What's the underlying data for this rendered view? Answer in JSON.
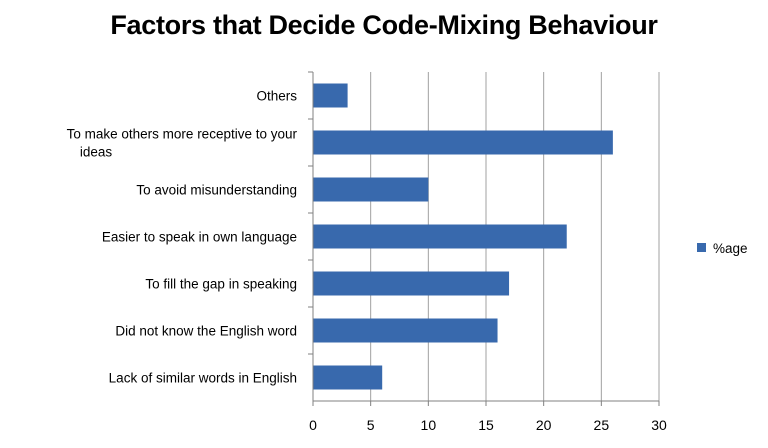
{
  "chart_data": {
    "type": "bar",
    "orientation": "horizontal",
    "title": "Factors that Decide Code-Mixing Behaviour",
    "categories": [
      "Others",
      "To make others more receptive to your ideas",
      "To avoid misunderstanding",
      "Easier to speak in own language",
      "To fill the gap in speaking",
      "Did not know the English word",
      "Lack of similar words in English"
    ],
    "category_lines": [
      [
        "Others"
      ],
      [
        "To make others more receptive to your",
        "ideas"
      ],
      [
        "To avoid misunderstanding"
      ],
      [
        "Easier to speak in own language"
      ],
      [
        "To fill the gap in speaking"
      ],
      [
        "Did not know the English word"
      ],
      [
        "Lack of similar words in English"
      ]
    ],
    "series": [
      {
        "name": "%age",
        "values": [
          3,
          26,
          10,
          22,
          17,
          16,
          6
        ]
      }
    ],
    "xlim": [
      0,
      30
    ],
    "xticks": [
      0,
      5,
      10,
      15,
      20,
      25,
      30
    ],
    "xlabel": "",
    "ylabel": "",
    "grid": true,
    "legend_position": "right",
    "bar_color": "#3869AD",
    "grid_color": "#A0A0A0"
  }
}
